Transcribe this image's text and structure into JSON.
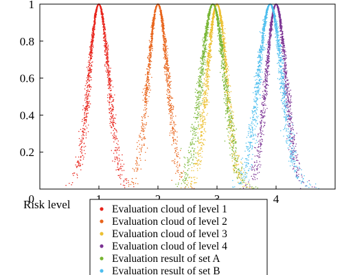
{
  "chart_data": {
    "type": "scatter",
    "title": "",
    "xlabel": "Risk level",
    "ylabel": "",
    "xlim": [
      0,
      5.0
    ],
    "ylim": [
      0,
      1
    ],
    "grid": false,
    "legend_position": "bottom",
    "x_ticks": [
      1,
      2,
      3,
      4
    ],
    "x_tick_labels": [
      "1",
      "2",
      "3",
      "4"
    ],
    "y_ticks": [
      0,
      0.2,
      0.4,
      0.6,
      0.8,
      1
    ],
    "y_tick_labels": [
      "0",
      "0.2",
      "0.4",
      "0.6",
      "0.8",
      "1"
    ],
    "series": [
      {
        "name": "Evaluation cloud of level 1",
        "color": "#e8231a",
        "cloud": {
          "Ex": 1.0,
          "En": 0.167,
          "He": 0.02
        },
        "drops": 1500
      },
      {
        "name": "Evaluation cloud of level 2",
        "color": "#e8641b",
        "cloud": {
          "Ex": 2.0,
          "En": 0.167,
          "He": 0.02
        },
        "drops": 1500
      },
      {
        "name": "Evaluation cloud of level 3",
        "color": "#ecc032",
        "cloud": {
          "Ex": 3.0,
          "En": 0.167,
          "He": 0.02
        },
        "drops": 1500
      },
      {
        "name": "Evaluation cloud of level 4",
        "color": "#7a3293",
        "cloud": {
          "Ex": 4.0,
          "En": 0.167,
          "He": 0.02
        },
        "drops": 1500
      },
      {
        "name": "Evaluation result of set A",
        "color": "#77b532",
        "cloud": {
          "Ex": 2.93,
          "En": 0.2,
          "He": 0.025
        },
        "drops": 1500
      },
      {
        "name": "Evaluation result of set B",
        "color": "#4dbeee",
        "cloud": {
          "Ex": 3.9,
          "En": 0.2,
          "He": 0.025
        },
        "drops": 1500
      }
    ]
  }
}
